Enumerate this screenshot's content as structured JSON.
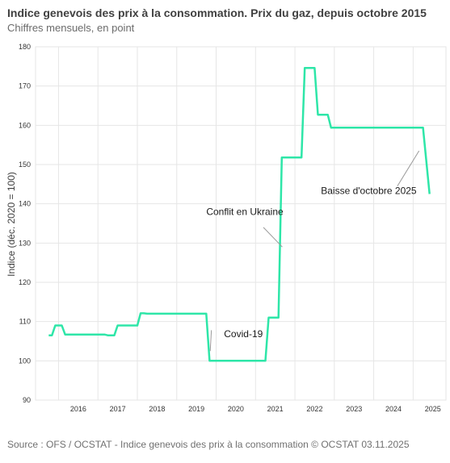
{
  "title": "Indice genevois des prix à la consommation. Prix du gaz, depuis octobre 2015",
  "subtitle": "Chiffres mensuels, en point",
  "source": "Source :  OFS / OCSTAT - Indice genevois des prix à la consommation  © OCSTAT 03.11.2025",
  "chart_data": {
    "type": "line",
    "title": "Indice genevois des prix à la consommation. Prix du gaz, depuis octobre 2015",
    "subtitle": "Chiffres mensuels, en point",
    "ylabel": "Indice (déc. 2020 = 100)",
    "xlabel": "",
    "ylim": [
      90,
      180
    ],
    "yticks": [
      90,
      100,
      110,
      120,
      130,
      140,
      150,
      160,
      170,
      180
    ],
    "xticks": [
      "2016",
      "2017",
      "2018",
      "2019",
      "2020",
      "2021",
      "2022",
      "2023",
      "2024",
      "2025"
    ],
    "grid": true,
    "line_color": "#2ee6a8",
    "series": [
      {
        "points": [
          [
            "2015-10",
            106.5
          ],
          [
            "2015-11",
            106.5
          ],
          [
            "2015-12",
            109.0
          ],
          [
            "2016-01",
            109.0
          ],
          [
            "2016-02",
            109.0
          ],
          [
            "2016-03",
            106.7
          ],
          [
            "2016-06",
            106.7
          ],
          [
            "2016-09",
            106.7
          ],
          [
            "2016-12",
            106.7
          ],
          [
            "2017-03",
            106.7
          ],
          [
            "2017-04",
            106.5
          ],
          [
            "2017-06",
            106.5
          ],
          [
            "2017-07",
            109.0
          ],
          [
            "2017-10",
            109.0
          ],
          [
            "2018-01",
            109.0
          ],
          [
            "2018-02",
            112.1
          ],
          [
            "2018-03",
            112.1
          ],
          [
            "2018-04",
            112.0
          ],
          [
            "2018-07",
            112.0
          ],
          [
            "2018-10",
            112.0
          ],
          [
            "2019-01",
            112.0
          ],
          [
            "2019-04",
            112.0
          ],
          [
            "2019-07",
            112.0
          ],
          [
            "2019-10",
            112.0
          ],
          [
            "2019-11",
            100.0
          ],
          [
            "2020-01",
            100.0
          ],
          [
            "2020-04",
            100.0
          ],
          [
            "2020-07",
            100.0
          ],
          [
            "2020-10",
            100.0
          ],
          [
            "2021-01",
            100.0
          ],
          [
            "2021-04",
            100.0
          ],
          [
            "2021-05",
            111.0
          ],
          [
            "2021-08",
            111.0
          ],
          [
            "2021-09",
            151.8
          ],
          [
            "2021-12",
            151.8
          ],
          [
            "2022-03",
            151.8
          ],
          [
            "2022-04",
            174.6
          ],
          [
            "2022-07",
            174.6
          ],
          [
            "2022-08",
            162.7
          ],
          [
            "2022-11",
            162.7
          ],
          [
            "2022-12",
            159.4
          ],
          [
            "2023-03",
            159.4
          ],
          [
            "2023-06",
            159.4
          ],
          [
            "2023-09",
            159.4
          ],
          [
            "2023-12",
            159.4
          ],
          [
            "2024-03",
            159.4
          ],
          [
            "2024-06",
            159.4
          ],
          [
            "2024-09",
            159.4
          ],
          [
            "2024-12",
            159.4
          ],
          [
            "2025-03",
            159.4
          ],
          [
            "2025-04",
            159.4
          ],
          [
            "2025-06",
            142.5
          ]
        ]
      }
    ],
    "annotations": [
      {
        "text": "Covid-19"
      },
      {
        "text": "Conflit en Ukraine"
      },
      {
        "text": "Baisse  d'octobre 2025"
      }
    ]
  }
}
